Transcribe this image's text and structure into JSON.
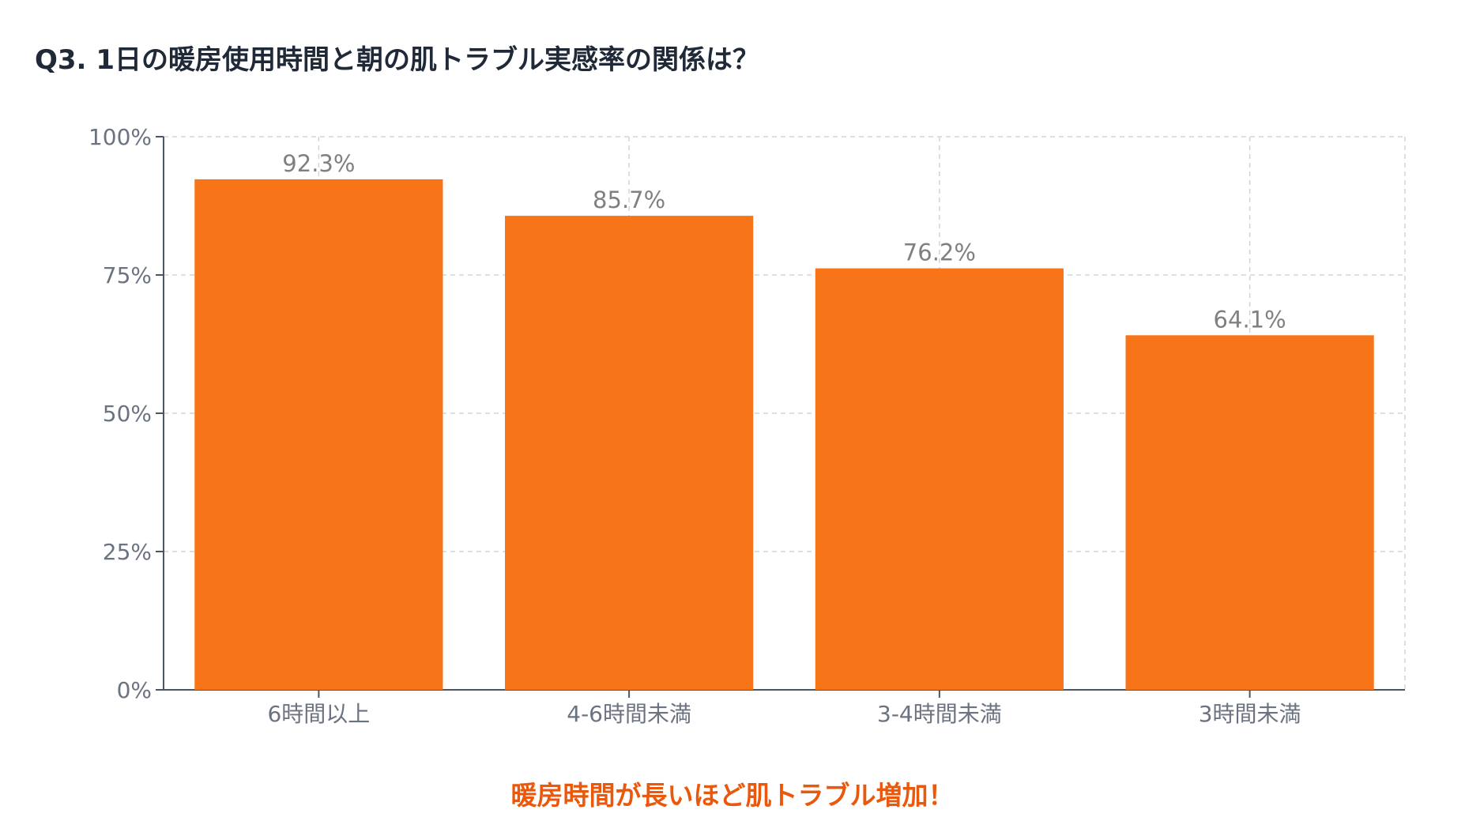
{
  "chart_data": {
    "type": "bar",
    "title": "Q3. 1日の暖房使用時間と朝の肌トラブル実感率の関係は？",
    "categories": [
      "6時間以上",
      "4-6時間未満",
      "3-4時間未満",
      "3時間未満"
    ],
    "values": [
      92.3,
      85.7,
      76.2,
      64.1
    ],
    "data_labels": [
      "92.3%",
      "85.7%",
      "76.2%",
      "64.1%"
    ],
    "ylim": [
      0,
      100
    ],
    "yticks": [
      0,
      25,
      50,
      75,
      100
    ],
    "ytick_labels": [
      "0%",
      "25%",
      "50%",
      "75%",
      "100%"
    ],
    "xlabel": "",
    "ylabel": "",
    "grid": true,
    "grid_style": "dashed",
    "legend": "none",
    "bar_color": "#f77518"
  },
  "note": {
    "text": "暖房時間が長いほど肌トラブル増加！",
    "color": "#ea580c"
  }
}
